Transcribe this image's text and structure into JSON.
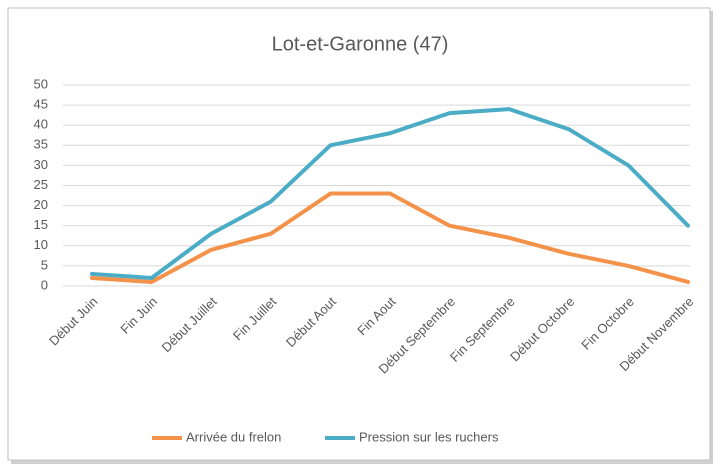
{
  "chart_data": {
    "type": "line",
    "title": "Lot-et-Garonne (47)",
    "categories": [
      "Début Juin",
      "Fin Juin",
      "Début Juillet",
      "Fin Juillet",
      "Début Aout",
      "Fin Aout",
      "Début Septembre",
      "Fin Septembre",
      "Début Octobre",
      "Fin Octobre",
      "Début Novembre"
    ],
    "series": [
      {
        "name": "Arrivée du frelon",
        "color": "#f4924a",
        "values": [
          2,
          1,
          9,
          13,
          23,
          23,
          15,
          12,
          8,
          5,
          1
        ]
      },
      {
        "name": "Pression sur les ruchers",
        "color": "#4bacc6",
        "values": [
          3,
          2,
          13,
          21,
          35,
          38,
          43,
          44,
          39,
          30,
          15
        ]
      }
    ],
    "ylim": [
      0,
      50
    ],
    "yticks": [
      0,
      5,
      10,
      15,
      20,
      25,
      30,
      35,
      40,
      45,
      50
    ],
    "grid": true,
    "legend": "bottom"
  }
}
